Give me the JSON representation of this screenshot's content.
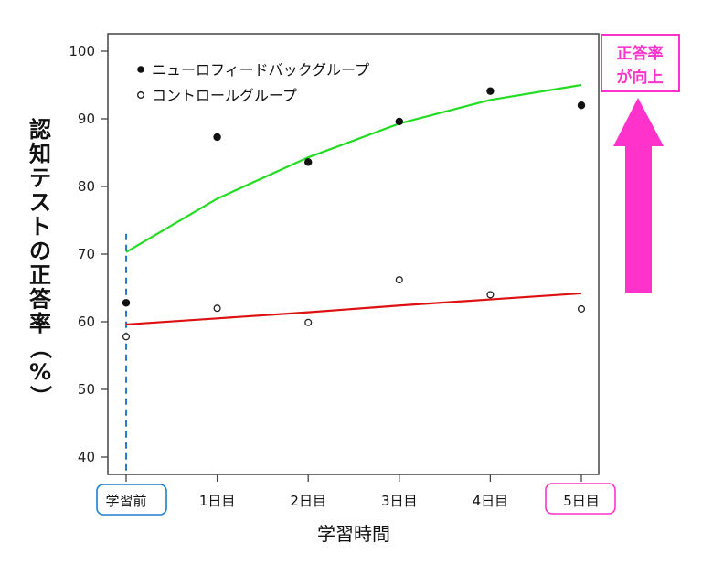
{
  "chart_data": {
    "type": "scatter",
    "title": "",
    "xlabel": "学習時間",
    "ylabel": "認知テストの正答率（%）",
    "categories": [
      "学習前",
      "1日目",
      "2日目",
      "3日目",
      "4日目",
      "5日目"
    ],
    "yticks": [
      40,
      50,
      60,
      70,
      80,
      90,
      100
    ],
    "ylim": [
      38.5,
      102.5
    ],
    "grid": false,
    "legend_position": "top-left",
    "series": [
      {
        "name": "ニューロフィードバックグループ",
        "marker": "filled-circle",
        "values": [
          62.8,
          87.3,
          83.6,
          89.6,
          94.1,
          92.0
        ],
        "fit_line": {
          "color": "#22dd22",
          "values": [
            70.3,
            78.2,
            84.3,
            89.3,
            92.8,
            95.0
          ]
        }
      },
      {
        "name": "コントロールグループ",
        "marker": "open-circle",
        "values": [
          57.8,
          62.0,
          59.9,
          66.2,
          64.0,
          61.9
        ],
        "fit_line": {
          "color": "#dd1111",
          "values": [
            59.6,
            60.5,
            61.4,
            62.4,
            63.3,
            64.2
          ]
        }
      }
    ],
    "annotations": [
      {
        "type": "vertical-dashed-line",
        "x": "学習前",
        "y_range": [
          38.5,
          73
        ],
        "color": "#1f7fd0"
      },
      {
        "type": "boxed-label",
        "target": "学習前",
        "color": "#1f7fd0"
      },
      {
        "type": "boxed-label",
        "target": "5日目",
        "color": "#ff33cc"
      },
      {
        "type": "up-arrow",
        "text": "正答率が向上",
        "color": "#ff33cc"
      }
    ]
  },
  "legend": {
    "items": [
      {
        "label": "ニューロフィードバックグループ",
        "marker": "filled"
      },
      {
        "label": "コントロールグループ",
        "marker": "open"
      }
    ]
  },
  "annotation": {
    "line1": "正答率",
    "line2": "が向上",
    "color": "#ff33cc"
  },
  "colors": {
    "nf_fit": "#22dd22",
    "control_fit": "#dd1111",
    "baseline": "#1f7fd0",
    "highlight": "#ff33cc"
  }
}
